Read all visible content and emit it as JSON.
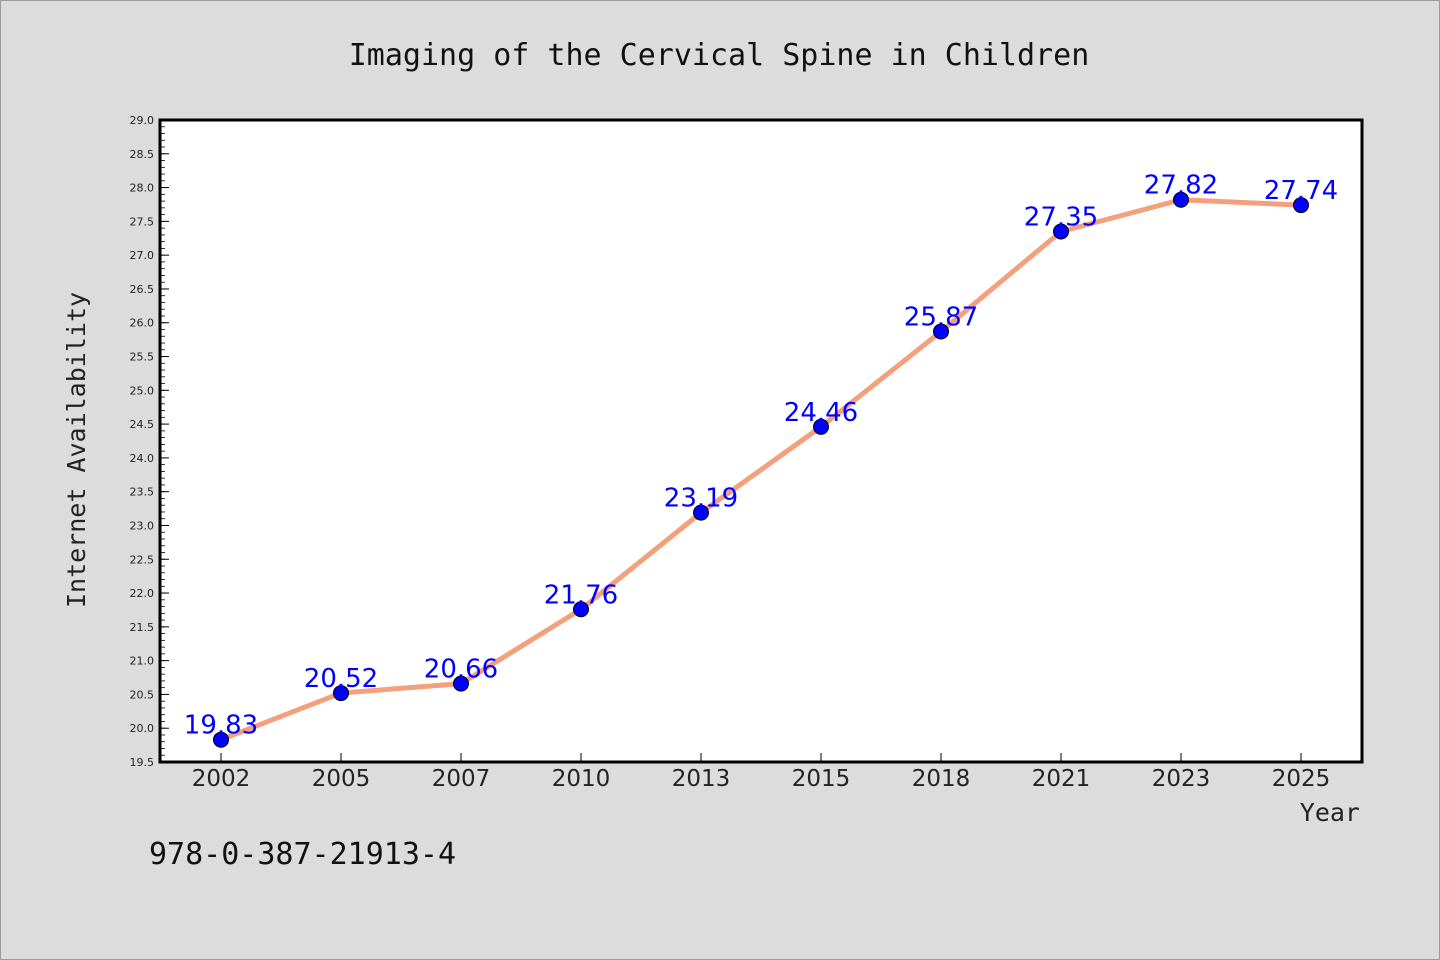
{
  "chart_data": {
    "type": "line",
    "title": "Imaging of the Cervical Spine in Children",
    "xlabel": "Year",
    "ylabel": "Internet Availability",
    "categories": [
      "2002",
      "2005",
      "2007",
      "2010",
      "2013",
      "2015",
      "2018",
      "2021",
      "2023",
      "2025"
    ],
    "series": [
      {
        "values": [
          19.83,
          20.52,
          20.66,
          21.76,
          23.19,
          24.46,
          25.87,
          27.35,
          27.82,
          27.74
        ],
        "line_color": "#f4a07c",
        "marker_color": "#0000ff"
      }
    ],
    "data_labels": [
      "19.83",
      "20.52",
      "20.66",
      "21.76",
      "23.19",
      "24.46",
      "25.87",
      "27.35",
      "27.82",
      "27.74"
    ],
    "ylim": [
      19.5,
      29.0
    ],
    "yticks": [
      "19.5",
      "20.0",
      "20.5",
      "21.0",
      "21.5",
      "22.0",
      "22.5",
      "23.0",
      "23.5",
      "24.0",
      "24.5",
      "25.0",
      "25.5",
      "26.0",
      "26.5",
      "27.0",
      "27.5",
      "28.0",
      "28.5",
      "29.0"
    ],
    "grid": false,
    "legend": "none",
    "background": "#dcdcdc",
    "plot_background": "#ffffff"
  },
  "footer_code": "978-0-387-21913-4"
}
